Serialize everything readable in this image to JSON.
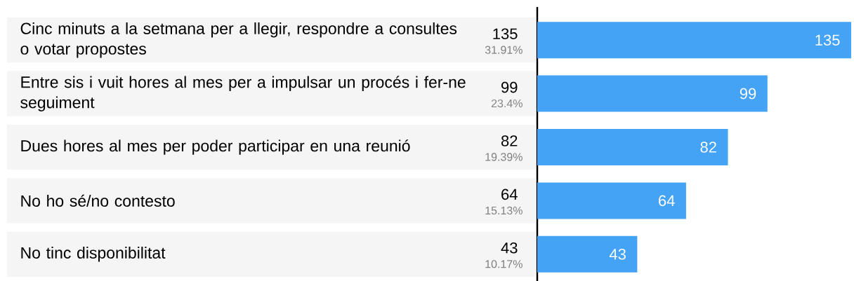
{
  "chart_data": {
    "type": "bar",
    "orientation": "horizontal",
    "categories": [
      "Cinc minuts a la setmana per a llegir, respondre a consultes o votar propostes",
      "Entre sis i vuit hores al mes per a impulsar un procés i fer-ne seguiment",
      "Dues hores al mes per poder participar en una reunió",
      "No ho sé/no contesto",
      "No tinc disponibilitat"
    ],
    "values": [
      135,
      99,
      82,
      64,
      43
    ],
    "color": "#45a3f5",
    "value_labels": [
      "135",
      "99",
      "82",
      "64",
      "43"
    ],
    "annotations": [
      "135",
      "31.91%",
      "99",
      "23.4%",
      "82",
      "19.39%",
      "64",
      "15.13%",
      "43",
      "10.17%"
    ]
  }
}
